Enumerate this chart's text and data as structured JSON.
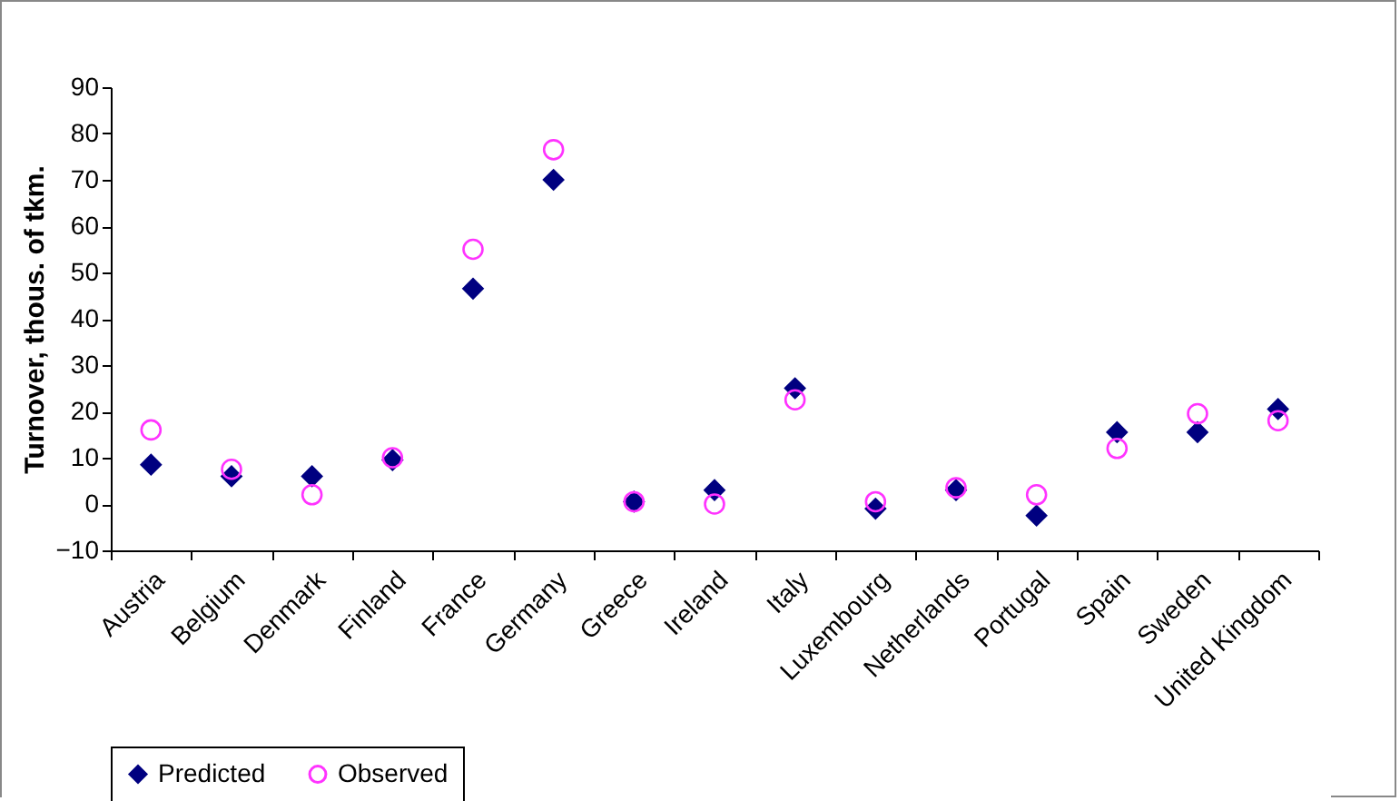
{
  "chart_data": {
    "type": "scatter",
    "ylabel": "Turnover, thous. of tkm.",
    "categories": [
      "Austria",
      "Belgium",
      "Denmark",
      "Finland",
      "France",
      "Germany",
      "Greece",
      "Ireland",
      "Italy",
      "Luxembourg",
      "Netherlands",
      "Portugal",
      "Spain",
      "Sweden",
      "United Kingdom"
    ],
    "series": [
      {
        "name": "Predicted",
        "color": "#000080",
        "marker": "diamond",
        "values": [
          8.5,
          6,
          6,
          9.5,
          46.5,
          70,
          0.5,
          3,
          25,
          -1,
          3,
          -2.5,
          15.5,
          15.5,
          20.5
        ]
      },
      {
        "name": "Observed",
        "color": "#ff33ff",
        "marker": "circle",
        "values": [
          16,
          7.5,
          2,
          10,
          55,
          76.5,
          0.5,
          0,
          22.5,
          0.5,
          3.5,
          2,
          12,
          19.5,
          18
        ]
      }
    ],
    "ylim": [
      -10,
      90
    ],
    "yticks": [
      -10,
      0,
      10,
      20,
      30,
      40,
      50,
      60,
      70,
      80,
      90
    ],
    "grid": false,
    "legend": "bottom"
  }
}
